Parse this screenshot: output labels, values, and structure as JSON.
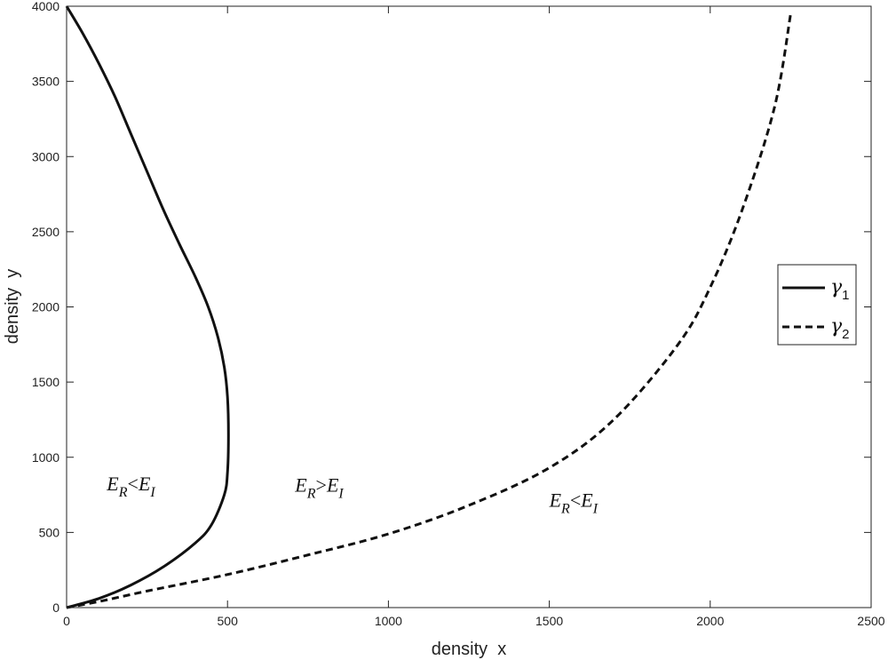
{
  "chart_data": {
    "type": "line",
    "xlabel": "density  x",
    "ylabel": "density  y",
    "xlim": [
      0,
      2500
    ],
    "ylim": [
      0,
      4000
    ],
    "xticks": [
      0,
      500,
      1000,
      1500,
      2000,
      2500
    ],
    "yticks": [
      0,
      500,
      1000,
      1500,
      2000,
      2500,
      3000,
      3500,
      4000
    ],
    "grid": false,
    "legend_position": "right",
    "series": [
      {
        "name": "γ1",
        "name_base": "γ",
        "name_sub": "1",
        "style": "solid",
        "x": [
          0,
          100,
          200,
          300,
          400,
          450,
          490,
          500,
          503,
          500,
          490,
          470,
          440,
          400,
          350,
          300,
          250,
          200,
          150,
          100,
          50,
          0
        ],
        "y": [
          0,
          60,
          150,
          270,
          430,
          550,
          750,
          900,
          1150,
          1400,
          1600,
          1800,
          2000,
          2200,
          2420,
          2650,
          2900,
          3150,
          3400,
          3620,
          3820,
          4000
        ]
      },
      {
        "name": "γ2",
        "name_base": "γ",
        "name_sub": "2",
        "style": "dashed",
        "x": [
          0,
          100,
          250,
          500,
          750,
          1000,
          1250,
          1500,
          1700,
          1900,
          2000,
          2100,
          2200,
          2250
        ],
        "y": [
          0,
          40,
          110,
          220,
          350,
          490,
          680,
          930,
          1250,
          1750,
          2130,
          2650,
          3330,
          3950
        ]
      }
    ],
    "annotations": [
      {
        "base1": "E",
        "sub1": "R",
        "op": "<",
        "base2": "E",
        "sub2": "I",
        "x": 125,
        "y": 780
      },
      {
        "base1": "E",
        "sub1": "R",
        "op": ">",
        "base2": "E",
        "sub2": "I",
        "x": 710,
        "y": 770
      },
      {
        "base1": "E",
        "sub1": "R",
        "op": "<",
        "base2": "E",
        "sub2": "I",
        "x": 1500,
        "y": 670
      }
    ]
  }
}
